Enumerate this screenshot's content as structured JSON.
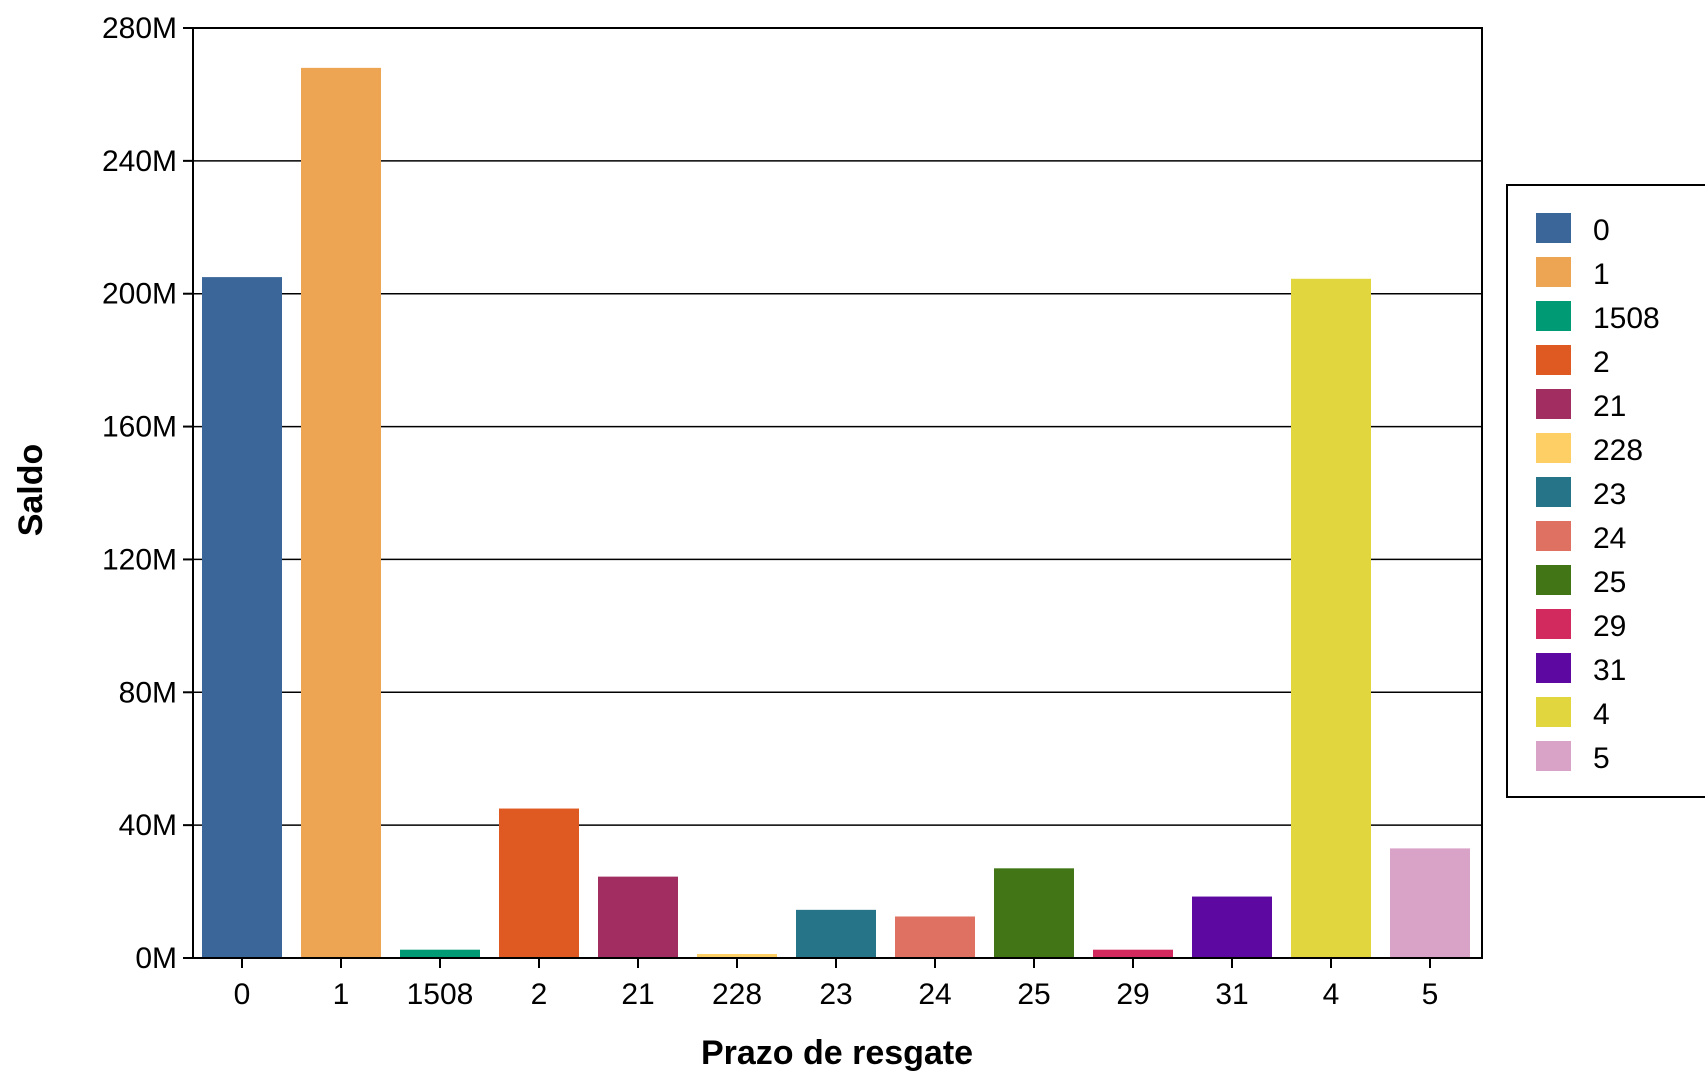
{
  "chart_data": {
    "type": "bar",
    "title": "",
    "xlabel": "Prazo de resgate",
    "ylabel": "Saldo",
    "categories": [
      "0",
      "1",
      "1508",
      "2",
      "21",
      "228",
      "23",
      "24",
      "25",
      "29",
      "31",
      "4",
      "5"
    ],
    "values": [
      205000000,
      268000000,
      2500000,
      45000000,
      24500000,
      1200000,
      14500000,
      12500000,
      27000000,
      2500000,
      18500000,
      204500000,
      33000000
    ],
    "colors": [
      "#3a6699",
      "#eea553",
      "#009a74",
      "#de5a22",
      "#a22d61",
      "#fecf65",
      "#267488",
      "#df7163",
      "#417515",
      "#d22a5e",
      "#5d08a1",
      "#e1d63d",
      "#d9a3c8"
    ],
    "ylim": [
      0,
      280000000
    ],
    "yticks": [
      0,
      40000000,
      80000000,
      120000000,
      160000000,
      200000000,
      240000000,
      280000000
    ],
    "ytick_labels": [
      "0M",
      "40M",
      "80M",
      "120M",
      "160M",
      "200M",
      "240M",
      "280M"
    ],
    "grid": true,
    "legend": {
      "position": "right",
      "entries": [
        "0",
        "1",
        "1508",
        "2",
        "21",
        "228",
        "23",
        "24",
        "25",
        "29",
        "31",
        "4",
        "5"
      ]
    }
  }
}
